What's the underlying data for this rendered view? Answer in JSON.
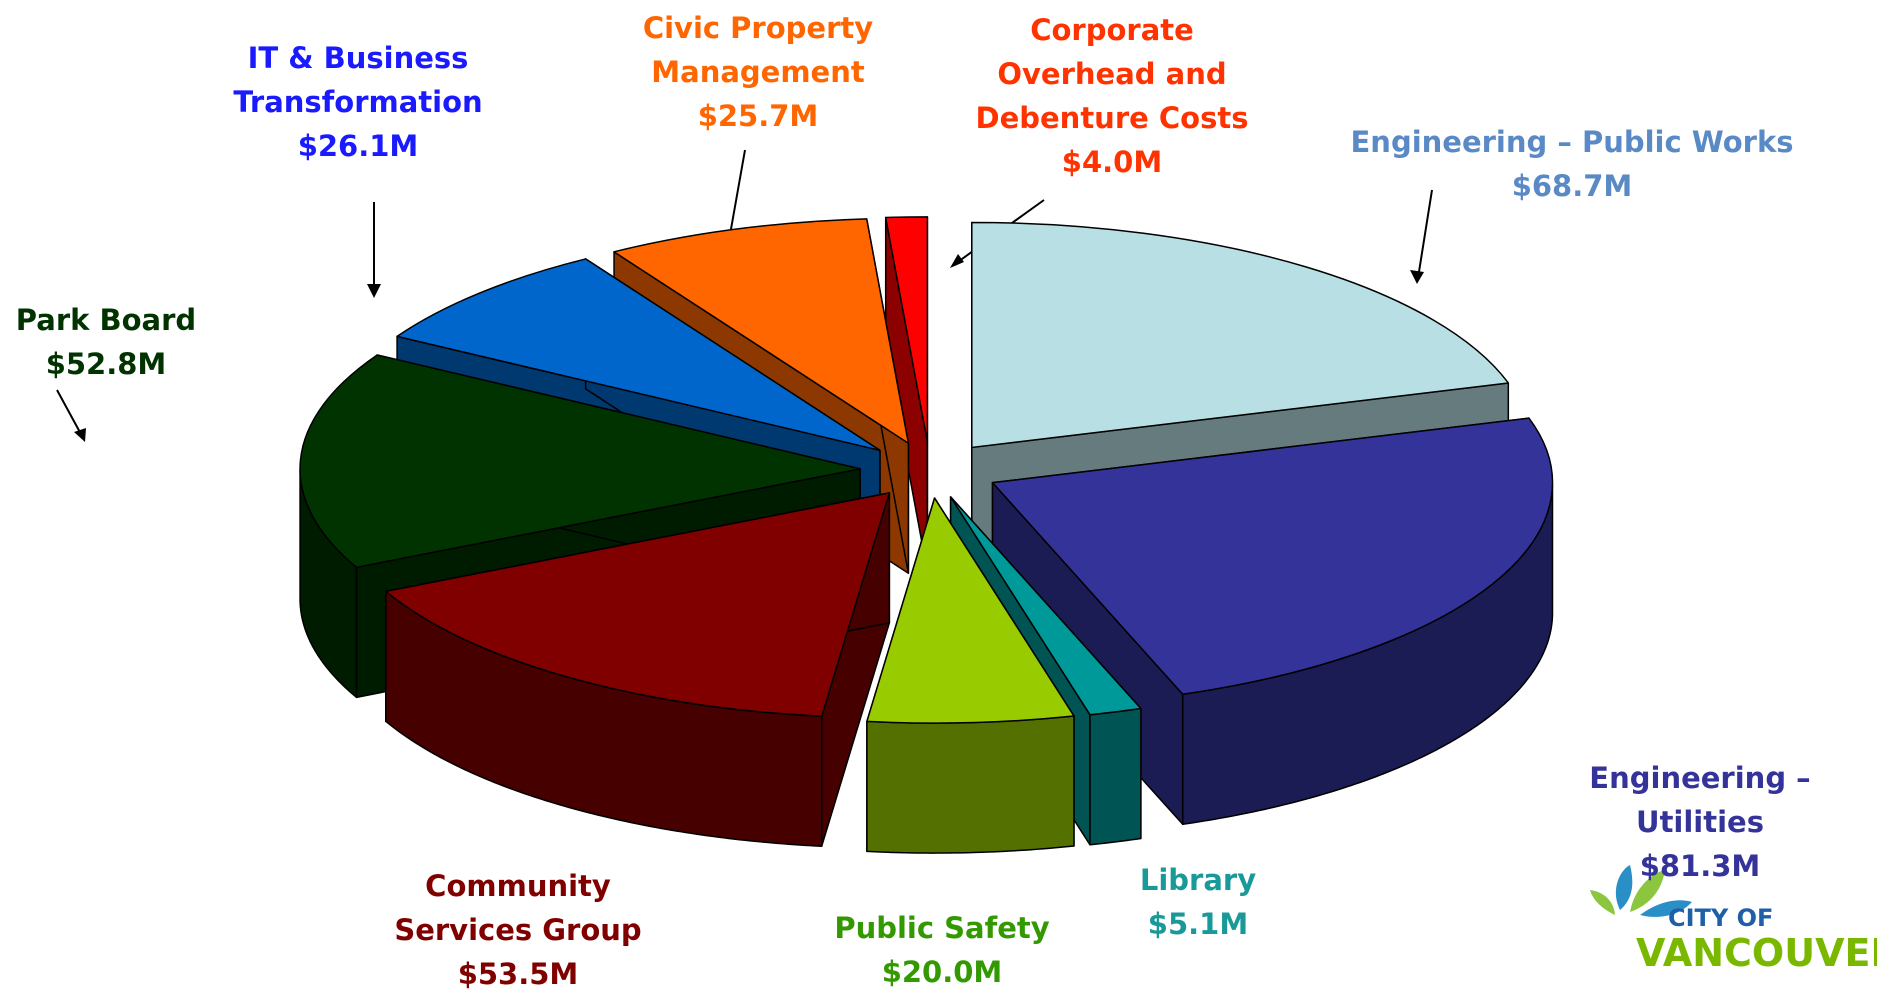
{
  "chart_data": {
    "type": "pie",
    "categories": [
      "Corporate Overhead and Debenture Costs",
      "Engineering – Public Works",
      "Engineering – Utilities",
      "Library",
      "Public Safety",
      "Community Services Group",
      "Park Board",
      "IT & Business Transformation",
      "Civic Property Management"
    ],
    "values": [
      4.0,
      68.7,
      81.3,
      5.1,
      20.0,
      53.5,
      52.8,
      26.1,
      25.7
    ],
    "value_labels": [
      "$4.0M",
      "$68.7M",
      "$81.3M",
      "$5.1M",
      "$20.0M",
      "$53.5M",
      "$52.8M",
      "$26.1M",
      "$25.7M"
    ],
    "colors": [
      "#ff0000",
      "#b8e0e4",
      "#333399",
      "#009999",
      "#99cc00",
      "#800000",
      "#003300",
      "#0066cc",
      "#ff6600"
    ],
    "exploded": true,
    "three_d": true
  },
  "logo": [
    "CITY OF",
    "VANCOUVER"
  ]
}
